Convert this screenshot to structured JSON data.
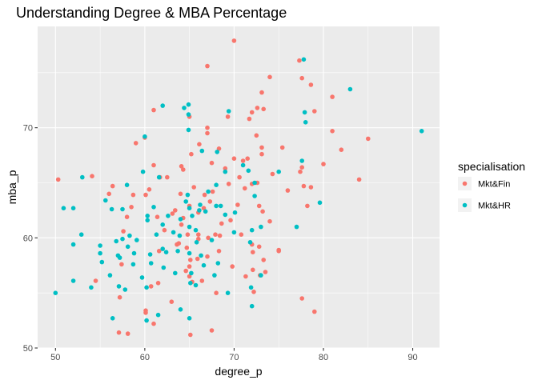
{
  "chart_data": {
    "type": "scatter",
    "title": "Understanding Degree & MBA Percentage",
    "xlabel": "degree_p",
    "ylabel": "mba_p",
    "xlim": [
      48.0,
      93.0
    ],
    "ylim": [
      50.0,
      79.2
    ],
    "xticks": [
      50,
      60,
      70,
      80,
      90
    ],
    "yticks": [
      50,
      60,
      70
    ],
    "grid": true,
    "legend": {
      "title": "specialisation",
      "position": "right"
    },
    "series": [
      {
        "name": "Mkt&Fin",
        "color": "#F8766D",
        "points": [
          [
            50.3,
            65.3
          ],
          [
            54.1,
            65.6
          ],
          [
            54.5,
            56.1
          ],
          [
            56.0,
            64.0
          ],
          [
            56.4,
            64.7
          ],
          [
            57.1,
            51.4
          ],
          [
            57.2,
            54.6
          ],
          [
            57.4,
            57.6
          ],
          [
            57.6,
            60.6
          ],
          [
            58.0,
            61.9
          ],
          [
            58.1,
            51.3
          ],
          [
            58.5,
            62.8
          ],
          [
            58.7,
            63.9
          ],
          [
            59.0,
            68.6
          ],
          [
            60.0,
            69.1
          ],
          [
            60.1,
            63.9
          ],
          [
            60.1,
            53.2
          ],
          [
            60.1,
            53.4
          ],
          [
            60.5,
            64.4
          ],
          [
            60.7,
            55.6
          ],
          [
            61.0,
            66.6
          ],
          [
            61.0,
            71.6
          ],
          [
            61.0,
            52.2
          ],
          [
            61.4,
            61.9
          ],
          [
            61.5,
            55.9
          ],
          [
            61.6,
            58.8
          ],
          [
            61.7,
            65.5
          ],
          [
            62.2,
            60.7
          ],
          [
            62.5,
            65.5
          ],
          [
            63.0,
            54.2
          ],
          [
            63.1,
            62.2
          ],
          [
            63.4,
            62.5
          ],
          [
            63.6,
            59.4
          ],
          [
            63.8,
            59.5
          ],
          [
            64.0,
            64.0
          ],
          [
            64.1,
            61.2
          ],
          [
            64.1,
            66.5
          ],
          [
            64.3,
            66.2
          ],
          [
            64.3,
            61.8
          ],
          [
            64.6,
            57.0
          ],
          [
            64.7,
            59.1
          ],
          [
            64.8,
            60.3
          ],
          [
            65.0,
            71.0
          ],
          [
            65.0,
            62.9
          ],
          [
            65.0,
            57.4
          ],
          [
            65.0,
            56.5
          ],
          [
            65.1,
            58.0
          ],
          [
            65.1,
            51.2
          ],
          [
            65.2,
            67.6
          ],
          [
            65.3,
            56.0
          ],
          [
            65.5,
            64.6
          ],
          [
            65.9,
            58.1
          ],
          [
            66.0,
            60.3
          ],
          [
            66.0,
            62.3
          ],
          [
            66.0,
            59.9
          ],
          [
            66.1,
            68.5
          ],
          [
            66.4,
            56.1
          ],
          [
            66.6,
            62.7
          ],
          [
            66.7,
            63.9
          ],
          [
            67.0,
            70.0
          ],
          [
            67.0,
            69.5
          ],
          [
            67.0,
            75.6
          ],
          [
            67.0,
            58.3
          ],
          [
            67.1,
            60.0
          ],
          [
            67.3,
            63.3
          ],
          [
            67.5,
            66.8
          ],
          [
            67.5,
            51.6
          ],
          [
            67.6,
            64.2
          ],
          [
            67.9,
            60.3
          ],
          [
            68.0,
            55.0
          ],
          [
            68.3,
            68.1
          ],
          [
            68.3,
            58.8
          ],
          [
            68.4,
            60.2
          ],
          [
            68.6,
            61.3
          ],
          [
            69.0,
            66.3
          ],
          [
            69.3,
            71.0
          ],
          [
            69.4,
            64.9
          ],
          [
            69.6,
            61.6
          ],
          [
            69.8,
            57.4
          ],
          [
            70.0,
            77.9
          ],
          [
            70.0,
            67.2
          ],
          [
            70.4,
            63.0
          ],
          [
            70.6,
            65.5
          ],
          [
            70.8,
            60.3
          ],
          [
            71.0,
            67.0
          ],
          [
            71.2,
            64.5
          ],
          [
            71.3,
            56.5
          ],
          [
            71.5,
            67.2
          ],
          [
            71.7,
            70.8
          ],
          [
            72.0,
            71.4
          ],
          [
            72.0,
            64.9
          ],
          [
            72.0,
            59.4
          ],
          [
            72.1,
            58.7
          ],
          [
            72.1,
            57.1
          ],
          [
            72.2,
            55.1
          ],
          [
            72.5,
            69.3
          ],
          [
            72.6,
            65.0
          ],
          [
            72.6,
            71.8
          ],
          [
            72.8,
            62.9
          ],
          [
            72.8,
            59.2
          ],
          [
            72.9,
            56.6
          ],
          [
            73.1,
            73.2
          ],
          [
            73.1,
            68.2
          ],
          [
            73.1,
            67.6
          ],
          [
            73.2,
            62.4
          ],
          [
            73.3,
            71.7
          ],
          [
            73.3,
            58.0
          ],
          [
            73.5,
            56.9
          ],
          [
            74.0,
            74.6
          ],
          [
            74.0,
            61.5
          ],
          [
            74.3,
            65.8
          ],
          [
            75.0,
            58.9
          ],
          [
            75.0,
            58.8
          ],
          [
            75.4,
            68.2
          ],
          [
            76.0,
            64.3
          ],
          [
            77.3,
            76.1
          ],
          [
            77.4,
            66.0
          ],
          [
            77.6,
            66.4
          ],
          [
            77.6,
            54.5
          ],
          [
            77.6,
            74.5
          ],
          [
            77.8,
            64.7
          ],
          [
            78.2,
            62.9
          ],
          [
            78.6,
            73.9
          ],
          [
            78.6,
            64.6
          ],
          [
            79.0,
            71.5
          ],
          [
            79.0,
            53.3
          ],
          [
            80.0,
            66.7
          ],
          [
            81.0,
            72.8
          ],
          [
            81.0,
            69.7
          ],
          [
            82.0,
            68.0
          ],
          [
            84.0,
            65.3
          ],
          [
            85.0,
            69.0
          ]
        ]
      },
      {
        "name": "Mkt&HR",
        "color": "#00BFC4",
        "points": [
          [
            50.0,
            55.0
          ],
          [
            50.9,
            62.7
          ],
          [
            52.0,
            62.7
          ],
          [
            52.0,
            59.4
          ],
          [
            52.0,
            56.1
          ],
          [
            52.9,
            60.3
          ],
          [
            53.0,
            65.5
          ],
          [
            54.0,
            55.5
          ],
          [
            55.0,
            59.3
          ],
          [
            55.0,
            58.6
          ],
          [
            55.2,
            57.8
          ],
          [
            55.6,
            63.4
          ],
          [
            56.1,
            56.6
          ],
          [
            56.3,
            62.6
          ],
          [
            56.4,
            52.7
          ],
          [
            56.8,
            59.7
          ],
          [
            57.0,
            58.4
          ],
          [
            57.1,
            55.6
          ],
          [
            57.2,
            58.2
          ],
          [
            57.5,
            62.6
          ],
          [
            57.5,
            59.9
          ],
          [
            57.8,
            55.3
          ],
          [
            58.0,
            64.8
          ],
          [
            58.1,
            59.2
          ],
          [
            58.3,
            60.2
          ],
          [
            58.7,
            57.6
          ],
          [
            58.8,
            58.6
          ],
          [
            59.1,
            59.8
          ],
          [
            59.7,
            56.4
          ],
          [
            59.8,
            66.0
          ],
          [
            60.0,
            69.2
          ],
          [
            60.2,
            52.5
          ],
          [
            60.2,
            55.5
          ],
          [
            60.3,
            61.6
          ],
          [
            60.3,
            62.0
          ],
          [
            60.6,
            58.5
          ],
          [
            60.7,
            57.7
          ],
          [
            61.0,
            62.8
          ],
          [
            61.3,
            60.3
          ],
          [
            61.5,
            53.0
          ],
          [
            61.6,
            65.5
          ],
          [
            62.0,
            72.0
          ],
          [
            62.0,
            61.2
          ],
          [
            62.0,
            59.0
          ],
          [
            62.1,
            57.3
          ],
          [
            62.4,
            58.7
          ],
          [
            62.6,
            62.0
          ],
          [
            63.2,
            60.5
          ],
          [
            63.4,
            56.8
          ],
          [
            63.7,
            58.8
          ],
          [
            63.9,
            60.2
          ],
          [
            64.0,
            53.5
          ],
          [
            64.0,
            61.7
          ],
          [
            64.4,
            71.8
          ],
          [
            64.6,
            63.3
          ],
          [
            64.8,
            63.9
          ],
          [
            64.9,
            72.1
          ],
          [
            64.9,
            71.2
          ],
          [
            64.9,
            69.8
          ],
          [
            65.0,
            62.7
          ],
          [
            65.0,
            61.0
          ],
          [
            65.0,
            58.6
          ],
          [
            65.0,
            52.7
          ],
          [
            65.1,
            55.9
          ],
          [
            65.2,
            56.8
          ],
          [
            65.3,
            62.0
          ],
          [
            65.7,
            60.7
          ],
          [
            65.7,
            55.7
          ],
          [
            65.8,
            59.6
          ],
          [
            66.1,
            62.5
          ],
          [
            66.2,
            63.0
          ],
          [
            66.3,
            58.4
          ],
          [
            66.4,
            67.9
          ],
          [
            66.6,
            57.5
          ],
          [
            66.8,
            62.4
          ],
          [
            67.1,
            64.2
          ],
          [
            67.5,
            59.8
          ],
          [
            67.8,
            56.6
          ],
          [
            68.0,
            64.8
          ],
          [
            68.0,
            62.9
          ],
          [
            68.1,
            67.8
          ],
          [
            68.2,
            57.7
          ],
          [
            68.5,
            62.9
          ],
          [
            69.0,
            66.0
          ],
          [
            69.0,
            62.1
          ],
          [
            69.3,
            55.0
          ],
          [
            69.4,
            71.5
          ],
          [
            70.0,
            60.5
          ],
          [
            70.1,
            62.3
          ],
          [
            71.0,
            66.6
          ],
          [
            71.6,
            66.1
          ],
          [
            71.8,
            59.6
          ],
          [
            71.9,
            55.5
          ],
          [
            72.0,
            60.7
          ],
          [
            72.0,
            53.8
          ],
          [
            72.3,
            65.0
          ],
          [
            72.3,
            63.8
          ],
          [
            73.0,
            61.0
          ],
          [
            73.0,
            56.6
          ],
          [
            75.0,
            66.0
          ],
          [
            77.0,
            61.0
          ],
          [
            77.6,
            67.0
          ],
          [
            77.8,
            76.2
          ],
          [
            77.9,
            71.4
          ],
          [
            78.0,
            70.5
          ],
          [
            79.6,
            63.2
          ],
          [
            83.0,
            73.5
          ],
          [
            91.0,
            69.7
          ]
        ]
      }
    ]
  }
}
